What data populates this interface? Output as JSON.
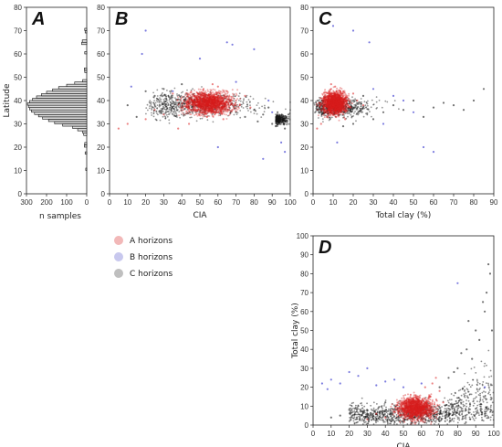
{
  "panels": {
    "A": {
      "label": "A",
      "xlabel": "n samples",
      "ylabel": "Latitude",
      "xticks": [
        "300",
        "200",
        "100",
        "0"
      ],
      "yticks": [
        "0",
        "10",
        "20",
        "30",
        "40",
        "50",
        "60",
        "70",
        "80"
      ]
    },
    "B": {
      "label": "B",
      "xlabel": "CIA",
      "xticks": [
        "0",
        "10",
        "20",
        "30",
        "40",
        "50",
        "60",
        "70",
        "80",
        "90",
        "100"
      ]
    },
    "C": {
      "label": "C",
      "xlabel": "Total clay (%)",
      "xticks": [
        "0",
        "10",
        "20",
        "30",
        "40",
        "50",
        "60",
        "70",
        "80",
        "90"
      ]
    },
    "D": {
      "label": "D",
      "xlabel": "CIA",
      "ylabel": "Total clay (%)",
      "xticks": [
        "0",
        "10",
        "20",
        "30",
        "40",
        "50",
        "60",
        "70",
        "80",
        "90",
        "100"
      ],
      "yticks": [
        "0",
        "10",
        "20",
        "30",
        "40",
        "50",
        "60",
        "70",
        "80",
        "90",
        "100"
      ]
    }
  },
  "legend": {
    "items": [
      {
        "label": "A horizons",
        "color": "#e88080"
      },
      {
        "label": "B horizons",
        "color": "#9a9ae0"
      },
      {
        "label": "C horizons",
        "color": "#888888"
      }
    ]
  },
  "chart_data": [
    {
      "type": "bar",
      "panel": "A",
      "orientation": "horizontal",
      "xlabel": "n samples",
      "ylabel": "Latitude",
      "xlim": [
        300,
        0
      ],
      "ylim": [
        0,
        80
      ],
      "bin_width": 1,
      "bins": [
        {
          "lat": 10,
          "n": 5
        },
        {
          "lat": 17,
          "n": 8
        },
        {
          "lat": 20,
          "n": 12
        },
        {
          "lat": 21,
          "n": 10
        },
        {
          "lat": 25,
          "n": 15
        },
        {
          "lat": 26,
          "n": 20
        },
        {
          "lat": 27,
          "n": 45
        },
        {
          "lat": 28,
          "n": 70
        },
        {
          "lat": 29,
          "n": 120
        },
        {
          "lat": 30,
          "n": 160
        },
        {
          "lat": 31,
          "n": 190
        },
        {
          "lat": 32,
          "n": 220
        },
        {
          "lat": 33,
          "n": 240
        },
        {
          "lat": 34,
          "n": 260
        },
        {
          "lat": 35,
          "n": 275
        },
        {
          "lat": 36,
          "n": 285
        },
        {
          "lat": 37,
          "n": 290
        },
        {
          "lat": 38,
          "n": 295
        },
        {
          "lat": 39,
          "n": 285
        },
        {
          "lat": 40,
          "n": 270
        },
        {
          "lat": 41,
          "n": 250
        },
        {
          "lat": 42,
          "n": 225
        },
        {
          "lat": 43,
          "n": 200
        },
        {
          "lat": 44,
          "n": 170
        },
        {
          "lat": 45,
          "n": 140
        },
        {
          "lat": 46,
          "n": 100
        },
        {
          "lat": 47,
          "n": 60
        },
        {
          "lat": 48,
          "n": 20
        },
        {
          "lat": 52,
          "n": 10
        },
        {
          "lat": 53,
          "n": 12
        },
        {
          "lat": 60,
          "n": 10
        },
        {
          "lat": 64,
          "n": 25
        },
        {
          "lat": 65,
          "n": 22
        },
        {
          "lat": 69,
          "n": 8
        },
        {
          "lat": 70,
          "n": 10
        }
      ]
    },
    {
      "type": "scatter",
      "panel": "B",
      "xlabel": "CIA",
      "ylabel": "",
      "xlim": [
        0,
        100
      ],
      "ylim": [
        0,
        80
      ],
      "series": [
        {
          "name": "A horizons",
          "points": [
            [
              50,
              40
            ],
            [
              55,
              42
            ],
            [
              60,
              38
            ],
            [
              45,
              36
            ],
            [
              65,
              44
            ],
            [
              70,
              40
            ],
            [
              58,
              35
            ],
            [
              52,
              45
            ],
            [
              48,
              41
            ],
            [
              62,
              39
            ],
            [
              40,
              37
            ],
            [
              35,
              43
            ],
            [
              30,
              34
            ],
            [
              68,
              36
            ],
            [
              75,
              42
            ],
            [
              57,
              47
            ],
            [
              63,
              32
            ],
            [
              44,
              30
            ],
            [
              38,
              28
            ],
            [
              54,
              33
            ],
            [
              60,
              46
            ],
            [
              72,
              38
            ],
            [
              66,
              41
            ],
            [
              49,
              43
            ],
            [
              58,
              40
            ],
            [
              25,
              36
            ],
            [
              20,
              32
            ],
            [
              10,
              30
            ],
            [
              5,
              28
            ],
            [
              78,
              37
            ]
          ]
        },
        {
          "name": "B horizons",
          "points": [
            [
              20,
              70
            ],
            [
              65,
              65
            ],
            [
              68,
              64
            ],
            [
              80,
              62
            ],
            [
              95,
              22
            ],
            [
              97,
              18
            ],
            [
              85,
              15
            ],
            [
              60,
              20
            ],
            [
              18,
              60
            ],
            [
              50,
              58
            ],
            [
              35,
              44
            ],
            [
              90,
              35
            ],
            [
              12,
              46
            ],
            [
              70,
              48
            ],
            [
              88,
              40
            ]
          ]
        },
        {
          "name": "C horizons",
          "points": [
            [
              95,
              32
            ],
            [
              98,
              33
            ],
            [
              90,
              30
            ],
            [
              85,
              34
            ],
            [
              80,
              36
            ],
            [
              96,
              31
            ],
            [
              99,
              34
            ],
            [
              88,
              37
            ],
            [
              92,
              29
            ],
            [
              75,
              33
            ],
            [
              70,
              35
            ],
            [
              30,
              45
            ],
            [
              25,
              42
            ],
            [
              40,
              47
            ],
            [
              15,
              33
            ],
            [
              20,
              44
            ],
            [
              10,
              38
            ],
            [
              97,
              28
            ],
            [
              93,
              35
            ],
            [
              82,
              31
            ]
          ]
        }
      ]
    },
    {
      "type": "scatter",
      "panel": "C",
      "xlabel": "Total clay (%)",
      "ylabel": "",
      "xlim": [
        0,
        90
      ],
      "ylim": [
        0,
        80
      ],
      "series": [
        {
          "name": "A horizons",
          "points": [
            [
              5,
              40
            ],
            [
              8,
              42
            ],
            [
              10,
              38
            ],
            [
              12,
              36
            ],
            [
              15,
              44
            ],
            [
              6,
              35
            ],
            [
              9,
              45
            ],
            [
              14,
              41
            ],
            [
              3,
              39
            ],
            [
              18,
              37
            ],
            [
              20,
              43
            ],
            [
              7,
              33
            ],
            [
              11,
              46
            ],
            [
              16,
              32
            ],
            [
              4,
              30
            ],
            [
              13,
              34
            ],
            [
              22,
              40
            ],
            [
              25,
              38
            ],
            [
              2,
              28
            ],
            [
              9,
              47
            ]
          ]
        },
        {
          "name": "B horizons",
          "points": [
            [
              20,
              70
            ],
            [
              28,
              65
            ],
            [
              55,
              20
            ],
            [
              60,
              18
            ],
            [
              35,
              30
            ],
            [
              30,
              45
            ],
            [
              45,
              40
            ],
            [
              10,
              72
            ],
            [
              50,
              35
            ],
            [
              40,
              42
            ],
            [
              12,
              22
            ]
          ]
        },
        {
          "name": "C horizons",
          "points": [
            [
              35,
              35
            ],
            [
              40,
              38
            ],
            [
              50,
              40
            ],
            [
              60,
              37
            ],
            [
              70,
              38
            ],
            [
              85,
              45
            ],
            [
              30,
              32
            ],
            [
              45,
              36
            ],
            [
              55,
              33
            ],
            [
              25,
              42
            ],
            [
              65,
              39
            ],
            [
              75,
              36
            ],
            [
              80,
              40
            ],
            [
              20,
              30
            ],
            [
              15,
              29
            ]
          ]
        }
      ]
    },
    {
      "type": "scatter",
      "panel": "D",
      "xlabel": "CIA",
      "ylabel": "Total clay (%)",
      "xlim": [
        0,
        100
      ],
      "ylim": [
        0,
        100
      ],
      "series": [
        {
          "name": "A horizons",
          "points": [
            [
              50,
              8
            ],
            [
              55,
              10
            ],
            [
              60,
              12
            ],
            [
              65,
              15
            ],
            [
              58,
              6
            ],
            [
              62,
              20
            ],
            [
              52,
              14
            ],
            [
              48,
              5
            ],
            [
              70,
              18
            ],
            [
              66,
              22
            ],
            [
              57,
              9
            ],
            [
              63,
              11
            ],
            [
              45,
              7
            ],
            [
              40,
              4
            ],
            [
              68,
              25
            ],
            [
              54,
              16
            ],
            [
              60,
              3
            ],
            [
              72,
              12
            ],
            [
              35,
              6
            ],
            [
              30,
              3
            ]
          ]
        },
        {
          "name": "B horizons",
          "points": [
            [
              5,
              22
            ],
            [
              10,
              24
            ],
            [
              15,
              22
            ],
            [
              20,
              28
            ],
            [
              30,
              30
            ],
            [
              45,
              24
            ],
            [
              35,
              21
            ],
            [
              50,
              20
            ],
            [
              25,
              26
            ],
            [
              8,
              19
            ],
            [
              40,
              23
            ],
            [
              80,
              75
            ],
            [
              95,
              20
            ],
            [
              60,
              22
            ]
          ]
        },
        {
          "name": "C horizons",
          "points": [
            [
              80,
              30
            ],
            [
              85,
              40
            ],
            [
              90,
              50
            ],
            [
              95,
              60
            ],
            [
              88,
              35
            ],
            [
              92,
              45
            ],
            [
              96,
              70
            ],
            [
              75,
              25
            ],
            [
              70,
              20
            ],
            [
              98,
              80
            ],
            [
              82,
              38
            ],
            [
              86,
              55
            ],
            [
              20,
              8
            ],
            [
              15,
              5
            ],
            [
              25,
              10
            ],
            [
              10,
              4
            ],
            [
              40,
              12
            ],
            [
              30,
              6
            ],
            [
              94,
              65
            ],
            [
              78,
              28
            ],
            [
              97,
              85
            ],
            [
              99,
              50
            ]
          ]
        }
      ]
    }
  ]
}
